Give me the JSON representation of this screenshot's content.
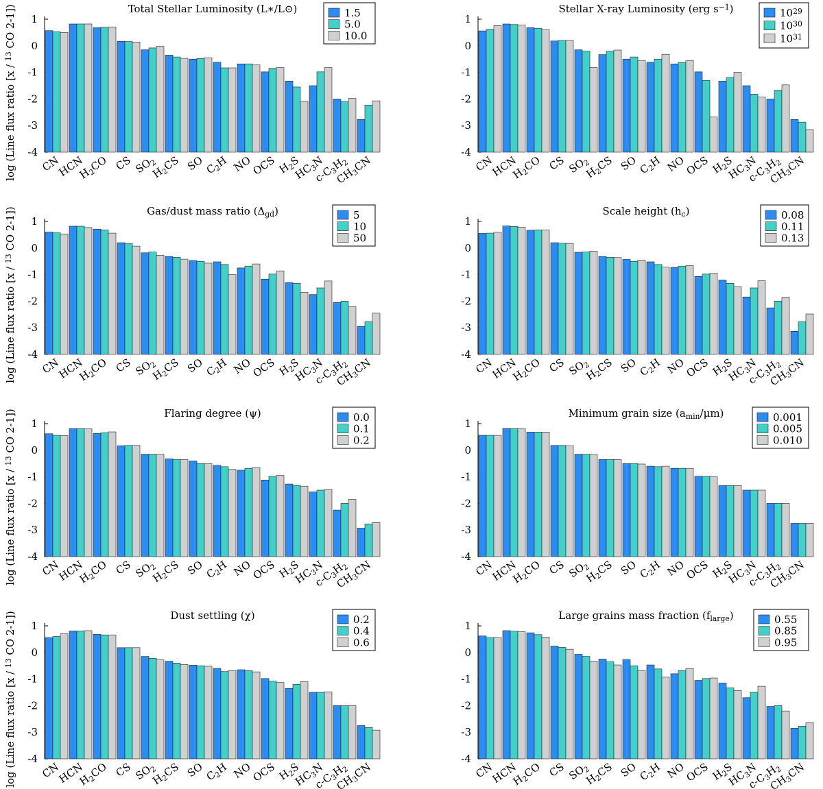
{
  "figure": {
    "ylabel": "log (Line flux ratio [x / ¹³ CO 2-1])"
  },
  "colors": [
    "#2b8cf3",
    "#43d0c8",
    "#d0d0d0"
  ],
  "chart_data": [
    {
      "type": "bar",
      "title": "Total Stellar Luminosity (L∗/L⊙)",
      "categories": [
        "CN",
        "HCN",
        "H₂CO",
        "CS",
        "SO₂",
        "H₂CS",
        "SO",
        "C₂H",
        "NO",
        "OCS",
        "H₂S",
        "HC₃N",
        "c-C₃H₂",
        "CH₃CN"
      ],
      "ylim": [
        -4,
        1
      ],
      "yticks": [
        1,
        0,
        -1,
        -2,
        -3,
        -4
      ],
      "series": [
        {
          "name": "1.5",
          "values": [
            0.57,
            0.82,
            0.68,
            0.17,
            -0.15,
            -0.35,
            -0.5,
            -0.62,
            -0.68,
            -0.98,
            -1.33,
            -1.5,
            -2.0,
            -2.77
          ]
        },
        {
          "name": "5.0",
          "values": [
            0.53,
            0.82,
            0.7,
            0.16,
            -0.08,
            -0.42,
            -0.48,
            -0.83,
            -0.68,
            -0.85,
            -1.55,
            -0.98,
            -2.1,
            -2.23
          ]
        },
        {
          "name": "10.0",
          "values": [
            0.5,
            0.82,
            0.71,
            0.14,
            -0.02,
            -0.47,
            -0.45,
            -0.83,
            -0.72,
            -0.82,
            -2.08,
            -0.82,
            -1.98,
            -2.07
          ]
        }
      ]
    },
    {
      "type": "bar",
      "title": "Stellar X-ray Luminosity (erg s⁻¹)",
      "categories": [
        "CN",
        "HCN",
        "H₂CO",
        "CS",
        "SO₂",
        "H₂CS",
        "SO",
        "C₂H",
        "NO",
        "OCS",
        "H₂S",
        "HC₃N",
        "c-C₃H₂",
        "CH₃CN"
      ],
      "ylim": [
        -4,
        1
      ],
      "yticks": [
        1,
        0,
        -1,
        -2,
        -3,
        -4
      ],
      "series": [
        {
          "name": "10²⁹",
          "values": [
            0.56,
            0.82,
            0.68,
            0.18,
            -0.15,
            -0.33,
            -0.5,
            -0.62,
            -0.68,
            -0.98,
            -1.33,
            -1.5,
            -2.0,
            -2.77
          ]
        },
        {
          "name": "10³⁰",
          "values": [
            0.62,
            0.8,
            0.66,
            0.2,
            -0.2,
            -0.2,
            -0.42,
            -0.5,
            -0.63,
            -1.3,
            -1.2,
            -1.82,
            -1.67,
            -2.87
          ]
        },
        {
          "name": "10³¹",
          "values": [
            0.76,
            0.78,
            0.6,
            0.2,
            -0.82,
            -0.16,
            -0.55,
            -0.32,
            -0.55,
            -2.68,
            -1.0,
            -1.93,
            -1.47,
            -3.15
          ]
        }
      ]
    },
    {
      "type": "bar",
      "title": "Gas/dust mass ratio (Δgd)",
      "categories": [
        "CN",
        "HCN",
        "H₂CO",
        "CS",
        "SO₂",
        "H₂CS",
        "SO",
        "C₂H",
        "NO",
        "OCS",
        "H₂S",
        "HC₃N",
        "c-C₃H₂",
        "CH₃CN"
      ],
      "ylim": [
        -4,
        1
      ],
      "yticks": [
        1,
        0,
        -1,
        -2,
        -3,
        -4
      ],
      "series": [
        {
          "name": "5",
          "values": [
            0.6,
            0.82,
            0.71,
            0.2,
            -0.18,
            -0.32,
            -0.47,
            -0.52,
            -0.75,
            -1.17,
            -1.3,
            -1.75,
            -2.05,
            -2.95
          ]
        },
        {
          "name": "10",
          "values": [
            0.57,
            0.82,
            0.68,
            0.17,
            -0.15,
            -0.35,
            -0.5,
            -0.62,
            -0.68,
            -0.98,
            -1.33,
            -1.5,
            -2.0,
            -2.77
          ]
        },
        {
          "name": "50",
          "values": [
            0.53,
            0.77,
            0.56,
            0.07,
            -0.27,
            -0.42,
            -0.57,
            -1.0,
            -0.6,
            -0.86,
            -1.67,
            -1.24,
            -2.2,
            -2.45
          ]
        }
      ]
    },
    {
      "type": "bar",
      "title": "Scale height (hc)",
      "categories": [
        "CN",
        "HCN",
        "H₂CO",
        "CS",
        "SO₂",
        "H₂CS",
        "SO",
        "C₂H",
        "NO",
        "OCS",
        "H₂S",
        "HC₃N",
        "c-C₃H₂",
        "CH₃CN"
      ],
      "ylim": [
        -4,
        1
      ],
      "yticks": [
        1,
        0,
        -1,
        -2,
        -3,
        -4
      ],
      "series": [
        {
          "name": "0.08",
          "values": [
            0.55,
            0.83,
            0.67,
            0.2,
            -0.16,
            -0.32,
            -0.43,
            -0.52,
            -0.73,
            -1.07,
            -1.2,
            -1.84,
            -2.25,
            -3.13
          ]
        },
        {
          "name": "0.11",
          "values": [
            0.56,
            0.81,
            0.68,
            0.18,
            -0.15,
            -0.35,
            -0.5,
            -0.62,
            -0.68,
            -0.98,
            -1.33,
            -1.5,
            -2.0,
            -2.77
          ]
        },
        {
          "name": "0.13",
          "values": [
            0.59,
            0.78,
            0.68,
            0.17,
            -0.12,
            -0.36,
            -0.45,
            -0.72,
            -0.66,
            -0.95,
            -1.45,
            -1.23,
            -1.85,
            -2.48
          ]
        }
      ]
    },
    {
      "type": "bar",
      "title": "Flaring degree (ψ)",
      "categories": [
        "CN",
        "HCN",
        "H₂CO",
        "CS",
        "SO₂",
        "H₂CS",
        "SO",
        "C₂H",
        "NO",
        "OCS",
        "H₂S",
        "HC₃N",
        "c-C₃H₂",
        "CH₃CN"
      ],
      "ylim": [
        -4,
        1
      ],
      "yticks": [
        1,
        0,
        -1,
        -2,
        -3,
        -4
      ],
      "series": [
        {
          "name": "0.0",
          "values": [
            0.62,
            0.81,
            0.63,
            0.17,
            -0.15,
            -0.32,
            -0.4,
            -0.57,
            -0.75,
            -1.12,
            -1.27,
            -1.57,
            -2.25,
            -2.93
          ]
        },
        {
          "name": "0.1",
          "values": [
            0.56,
            0.81,
            0.66,
            0.18,
            -0.15,
            -0.35,
            -0.5,
            -0.62,
            -0.68,
            -0.98,
            -1.33,
            -1.5,
            -2.0,
            -2.77
          ]
        },
        {
          "name": "0.2",
          "values": [
            0.55,
            0.8,
            0.69,
            0.18,
            -0.15,
            -0.35,
            -0.5,
            -0.72,
            -0.65,
            -0.95,
            -1.35,
            -1.48,
            -1.85,
            -2.72
          ]
        }
      ]
    },
    {
      "type": "bar",
      "title": "Minimum grain size (amin/μm)",
      "categories": [
        "CN",
        "HCN",
        "H₂CO",
        "CS",
        "SO₂",
        "H₂CS",
        "SO",
        "C₂H",
        "NO",
        "OCS",
        "H₂S",
        "HC₃N",
        "c-C₃H₂",
        "CH₃CN"
      ],
      "ylim": [
        -4,
        1
      ],
      "yticks": [
        1,
        0,
        -1,
        -2,
        -3,
        -4
      ],
      "series": [
        {
          "name": "0.001",
          "values": [
            0.56,
            0.82,
            0.68,
            0.18,
            -0.15,
            -0.35,
            -0.5,
            -0.6,
            -0.68,
            -0.98,
            -1.33,
            -1.5,
            -2.0,
            -2.75
          ]
        },
        {
          "name": "0.005",
          "values": [
            0.56,
            0.81,
            0.68,
            0.18,
            -0.15,
            -0.35,
            -0.5,
            -0.62,
            -0.68,
            -0.98,
            -1.33,
            -1.5,
            -2.0,
            -2.75
          ]
        },
        {
          "name": "0.010",
          "values": [
            0.56,
            0.82,
            0.68,
            0.17,
            -0.17,
            -0.35,
            -0.52,
            -0.6,
            -0.68,
            -1.0,
            -1.33,
            -1.5,
            -2.0,
            -2.75
          ]
        }
      ]
    },
    {
      "type": "bar",
      "title": "Dust settling (χ)",
      "categories": [
        "CN",
        "HCN",
        "H₂CO",
        "CS",
        "SO₂",
        "H₂CS",
        "SO",
        "C₂H",
        "NO",
        "OCS",
        "H₂S",
        "HC₃N",
        "c-C₃H₂",
        "CH₃CN"
      ],
      "ylim": [
        -4,
        1
      ],
      "yticks": [
        1,
        0,
        -1,
        -2,
        -3,
        -4
      ],
      "series": [
        {
          "name": "0.2",
          "values": [
            0.56,
            0.81,
            0.68,
            0.18,
            -0.15,
            -0.33,
            -0.48,
            -0.6,
            -0.65,
            -0.98,
            -1.35,
            -1.5,
            -2.0,
            -2.75
          ]
        },
        {
          "name": "0.4",
          "values": [
            0.6,
            0.81,
            0.66,
            0.18,
            -0.22,
            -0.4,
            -0.5,
            -0.72,
            -0.68,
            -1.08,
            -1.2,
            -1.5,
            -2.0,
            -2.82
          ]
        },
        {
          "name": "0.6",
          "values": [
            0.7,
            0.82,
            0.66,
            0.18,
            -0.28,
            -0.45,
            -0.52,
            -0.68,
            -0.73,
            -1.13,
            -1.1,
            -1.48,
            -2.0,
            -2.92
          ]
        }
      ]
    },
    {
      "type": "bar",
      "title": "Large grains mass fraction (flarge)",
      "categories": [
        "CN",
        "HCN",
        "H₂CO",
        "CS",
        "SO₂",
        "H₂CS",
        "SO",
        "C₂H",
        "NO",
        "OCS",
        "H₂S",
        "HC₃N",
        "c-C₃H₂",
        "CH₃CN"
      ],
      "ylim": [
        -4,
        1
      ],
      "yticks": [
        1,
        0,
        -1,
        -2,
        -3,
        -4
      ],
      "series": [
        {
          "name": "0.55",
          "values": [
            0.62,
            0.82,
            0.74,
            0.24,
            -0.07,
            -0.25,
            -0.27,
            -0.47,
            -0.8,
            -1.05,
            -1.15,
            -1.7,
            -2.03,
            -2.85
          ]
        },
        {
          "name": "0.85",
          "values": [
            0.56,
            0.8,
            0.67,
            0.19,
            -0.15,
            -0.35,
            -0.5,
            -0.62,
            -0.68,
            -0.98,
            -1.33,
            -1.5,
            -2.0,
            -2.77
          ]
        },
        {
          "name": "0.95",
          "values": [
            0.56,
            0.78,
            0.58,
            0.12,
            -0.33,
            -0.47,
            -0.68,
            -0.93,
            -0.6,
            -0.96,
            -1.43,
            -1.27,
            -2.2,
            -2.63
          ]
        }
      ]
    }
  ]
}
